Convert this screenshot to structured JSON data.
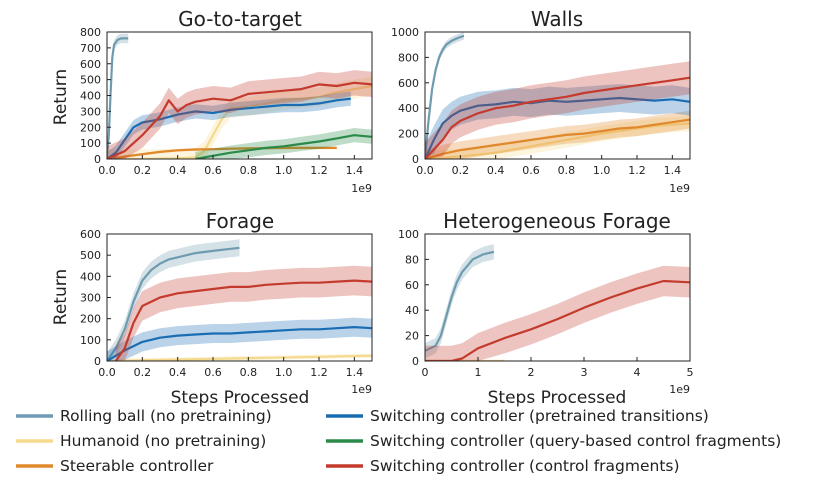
{
  "figure": {
    "ylabel": "Return",
    "xlabel": "Steps Processed",
    "x_exponent": "1e9"
  },
  "legend": [
    {
      "label": "Rolling ball (no pretraining)",
      "color": "#6f9bb0"
    },
    {
      "label": "Humanoid (no pretraining)",
      "color": "#f5da8e"
    },
    {
      "label": "Steerable controller",
      "color": "#e0882c"
    },
    {
      "label": "Switching controller (pretrained transitions)",
      "color": "#1a6db3"
    },
    {
      "label": "Switching controller (query-based control fragments)",
      "color": "#2a8a4a"
    },
    {
      "label": "Switching controller (control fragments)",
      "color": "#c43b2e"
    }
  ],
  "chart_data": [
    {
      "type": "line",
      "title": "Go-to-target",
      "ylabel": "Return",
      "xlabel": "",
      "x_exponent": "1e9",
      "xlim": [
        0,
        1.5
      ],
      "ylim": [
        0,
        800
      ],
      "xticks": [
        "0.0",
        "0.2",
        "0.4",
        "0.6",
        "0.8",
        "1.0",
        "1.2",
        "1.4"
      ],
      "yticks": [
        "0",
        "100",
        "200",
        "300",
        "400",
        "500",
        "600",
        "700",
        "800"
      ],
      "series": [
        {
          "color": "#6f9bb0",
          "band": 30,
          "x": [
            0,
            0.01,
            0.02,
            0.03,
            0.04,
            0.06,
            0.08,
            0.1,
            0.12
          ],
          "y": [
            0,
            150,
            400,
            640,
            720,
            750,
            760,
            760,
            760
          ]
        },
        {
          "color": "#f5da8e",
          "band": 60,
          "x": [
            0,
            0.2,
            0.4,
            0.5,
            0.55,
            0.6,
            0.65,
            0.7,
            0.8,
            0.9,
            1.0,
            1.1,
            1.2,
            1.3,
            1.4,
            1.5
          ],
          "y": [
            0,
            0,
            5,
            10,
            50,
            150,
            250,
            320,
            330,
            350,
            370,
            380,
            390,
            420,
            440,
            460
          ]
        },
        {
          "color": "#e0882c",
          "band": 8,
          "x": [
            0,
            0.1,
            0.2,
            0.3,
            0.4,
            0.5,
            0.6,
            0.7,
            0.8,
            0.9,
            1.0,
            1.1,
            1.2,
            1.3
          ],
          "y": [
            0,
            15,
            30,
            45,
            55,
            60,
            62,
            65,
            67,
            68,
            70,
            70,
            70,
            70
          ]
        },
        {
          "color": "#1a6db3",
          "band": 45,
          "x": [
            0,
            0.05,
            0.1,
            0.15,
            0.2,
            0.3,
            0.4,
            0.5,
            0.6,
            0.7,
            0.8,
            0.9,
            1.0,
            1.1,
            1.2,
            1.3,
            1.38
          ],
          "y": [
            0,
            40,
            120,
            200,
            230,
            250,
            280,
            300,
            290,
            310,
            320,
            330,
            340,
            340,
            350,
            370,
            380
          ]
        },
        {
          "color": "#2a8a4a",
          "band": 45,
          "x": [
            0.5,
            0.6,
            0.7,
            0.8,
            0.9,
            1.0,
            1.1,
            1.2,
            1.3,
            1.4,
            1.5
          ],
          "y": [
            0,
            20,
            40,
            55,
            70,
            80,
            95,
            110,
            130,
            150,
            140
          ]
        },
        {
          "color": "#c43b2e",
          "band": 80,
          "x": [
            0,
            0.1,
            0.2,
            0.3,
            0.35,
            0.4,
            0.45,
            0.5,
            0.6,
            0.7,
            0.8,
            0.9,
            1.0,
            1.1,
            1.2,
            1.3,
            1.4,
            1.5
          ],
          "y": [
            0,
            50,
            150,
            270,
            370,
            300,
            340,
            360,
            380,
            370,
            410,
            420,
            430,
            440,
            470,
            460,
            480,
            470
          ]
        }
      ]
    },
    {
      "type": "line",
      "title": "Walls",
      "ylabel": "",
      "xlabel": "",
      "x_exponent": "1e9",
      "xlim": [
        0,
        1.5
      ],
      "ylim": [
        0,
        1000
      ],
      "xticks": [
        "0.0",
        "0.2",
        "0.4",
        "0.6",
        "0.8",
        "1.0",
        "1.2",
        "1.4"
      ],
      "yticks": [
        "0",
        "200",
        "400",
        "600",
        "800",
        "1000"
      ],
      "series": [
        {
          "color": "#6f9bb0",
          "band": 30,
          "x": [
            0,
            0.02,
            0.04,
            0.06,
            0.08,
            0.1,
            0.12,
            0.15,
            0.18,
            0.22
          ],
          "y": [
            0,
            300,
            550,
            700,
            800,
            860,
            900,
            930,
            950,
            970
          ]
        },
        {
          "color": "#f5da8e",
          "band": 60,
          "x": [
            0,
            0.2,
            0.4,
            0.6,
            0.8,
            1.0,
            1.2,
            1.3,
            1.4,
            1.5
          ],
          "y": [
            0,
            20,
            50,
            100,
            150,
            200,
            240,
            260,
            270,
            280
          ]
        },
        {
          "color": "#e0882c",
          "band": 70,
          "x": [
            0,
            0.1,
            0.2,
            0.3,
            0.4,
            0.5,
            0.6,
            0.7,
            0.8,
            0.9,
            1.0,
            1.1,
            1.2,
            1.3,
            1.4,
            1.5
          ],
          "y": [
            0,
            40,
            70,
            90,
            110,
            130,
            150,
            170,
            190,
            200,
            220,
            240,
            250,
            270,
            290,
            310
          ]
        },
        {
          "color": "#1a6db3",
          "band": 110,
          "x": [
            0,
            0.05,
            0.1,
            0.15,
            0.2,
            0.3,
            0.4,
            0.5,
            0.6,
            0.7,
            0.8,
            0.9,
            1.0,
            1.1,
            1.2,
            1.3,
            1.4,
            1.5
          ],
          "y": [
            0,
            150,
            280,
            340,
            380,
            420,
            430,
            450,
            440,
            460,
            450,
            460,
            470,
            480,
            470,
            460,
            470,
            450
          ]
        },
        {
          "color": "#c43b2e",
          "band": 130,
          "x": [
            0,
            0.1,
            0.15,
            0.2,
            0.3,
            0.4,
            0.5,
            0.6,
            0.7,
            0.8,
            0.9,
            1.0,
            1.1,
            1.2,
            1.3,
            1.4,
            1.5
          ],
          "y": [
            0,
            150,
            250,
            300,
            360,
            400,
            420,
            450,
            470,
            490,
            520,
            540,
            560,
            580,
            600,
            620,
            640
          ]
        }
      ]
    },
    {
      "type": "line",
      "title": "Forage",
      "ylabel": "Return",
      "xlabel": "Steps Processed",
      "x_exponent": "1e9",
      "xlim": [
        0,
        1.5
      ],
      "ylim": [
        0,
        600
      ],
      "xticks": [
        "0.0",
        "0.2",
        "0.4",
        "0.6",
        "0.8",
        "1.0",
        "1.2",
        "1.4"
      ],
      "yticks": [
        "0",
        "100",
        "200",
        "300",
        "400",
        "500",
        "600"
      ],
      "series": [
        {
          "color": "#6f9bb0",
          "band": 40,
          "x": [
            0,
            0.05,
            0.1,
            0.15,
            0.2,
            0.25,
            0.3,
            0.35,
            0.4,
            0.5,
            0.6,
            0.7,
            0.75
          ],
          "y": [
            0,
            60,
            150,
            280,
            380,
            430,
            460,
            480,
            490,
            510,
            520,
            530,
            535
          ]
        },
        {
          "color": "#f5da8e",
          "band": 10,
          "x": [
            0,
            0.3,
            0.6,
            0.9,
            1.2,
            1.5
          ],
          "y": [
            0,
            5,
            10,
            15,
            20,
            25
          ]
        },
        {
          "color": "#1a6db3",
          "band": 45,
          "x": [
            0,
            0.1,
            0.2,
            0.3,
            0.4,
            0.5,
            0.6,
            0.7,
            0.8,
            0.9,
            1.0,
            1.1,
            1.2,
            1.3,
            1.4,
            1.5
          ],
          "y": [
            0,
            50,
            90,
            110,
            120,
            125,
            130,
            130,
            135,
            140,
            145,
            150,
            150,
            155,
            160,
            155
          ]
        },
        {
          "color": "#c43b2e",
          "band": 70,
          "x": [
            0.05,
            0.1,
            0.15,
            0.2,
            0.3,
            0.4,
            0.5,
            0.6,
            0.7,
            0.8,
            0.9,
            1.0,
            1.1,
            1.2,
            1.3,
            1.4,
            1.5
          ],
          "y": [
            0,
            60,
            180,
            260,
            300,
            320,
            330,
            340,
            350,
            350,
            360,
            365,
            370,
            370,
            375,
            380,
            375
          ]
        }
      ]
    },
    {
      "type": "line",
      "title": "Heterogeneous Forage",
      "ylabel": "",
      "xlabel": "Steps Processed",
      "x_exponent": "1e9",
      "xlim": [
        0,
        5
      ],
      "ylim": [
        0,
        100
      ],
      "xticks": [
        "0",
        "1",
        "2",
        "3",
        "4",
        "5"
      ],
      "yticks": [
        "0",
        "20",
        "40",
        "60",
        "80",
        "100"
      ],
      "series": [
        {
          "color": "#6f9bb0",
          "band": 6,
          "x": [
            0,
            0.2,
            0.3,
            0.4,
            0.5,
            0.6,
            0.7,
            0.8,
            0.9,
            1.0,
            1.1,
            1.2,
            1.3
          ],
          "y": [
            8,
            12,
            20,
            35,
            50,
            62,
            70,
            75,
            80,
            82,
            84,
            85,
            86
          ]
        },
        {
          "color": "#f5da8e",
          "band": 1,
          "x": [
            0,
            0.5,
            1.0,
            1.5
          ],
          "y": [
            0,
            0,
            0,
            0
          ]
        },
        {
          "color": "#c43b2e",
          "band": 12,
          "x": [
            0,
            0.5,
            0.7,
            1.0,
            1.5,
            2.0,
            2.5,
            3.0,
            3.5,
            4.0,
            4.5,
            5.0
          ],
          "y": [
            0,
            0,
            2,
            10,
            18,
            25,
            33,
            42,
            50,
            57,
            63,
            62
          ]
        }
      ]
    }
  ]
}
